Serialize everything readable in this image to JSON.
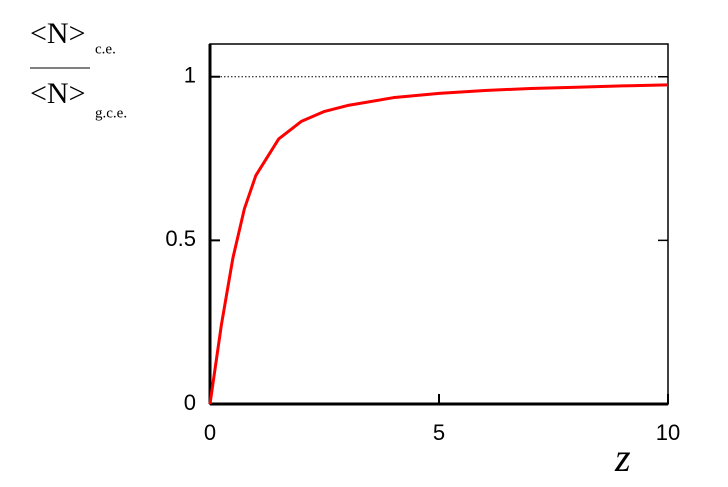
{
  "chart_data": {
    "type": "line",
    "x": [
      0,
      0.25,
      0.5,
      0.75,
      1,
      1.5,
      2,
      2.5,
      3,
      4,
      5,
      6,
      7,
      8,
      9,
      10
    ],
    "values": [
      0,
      0.243,
      0.446,
      0.596,
      0.698,
      0.81,
      0.864,
      0.894,
      0.912,
      0.936,
      0.949,
      0.958,
      0.964,
      0.968,
      0.972,
      0.975
    ],
    "color": "#ff0000",
    "xlim": [
      0,
      10
    ],
    "xticks": [
      0,
      5,
      10
    ],
    "ylim": [
      0,
      1.1
    ],
    "yticks": [
      0,
      0.5,
      1
    ],
    "reference_line": 1,
    "xlabel": "z",
    "ylabel": {
      "numerator": "<N>",
      "numerator_sub": "c.e.",
      "denominator": "<N>",
      "denominator_sub": "g.c.e."
    }
  }
}
